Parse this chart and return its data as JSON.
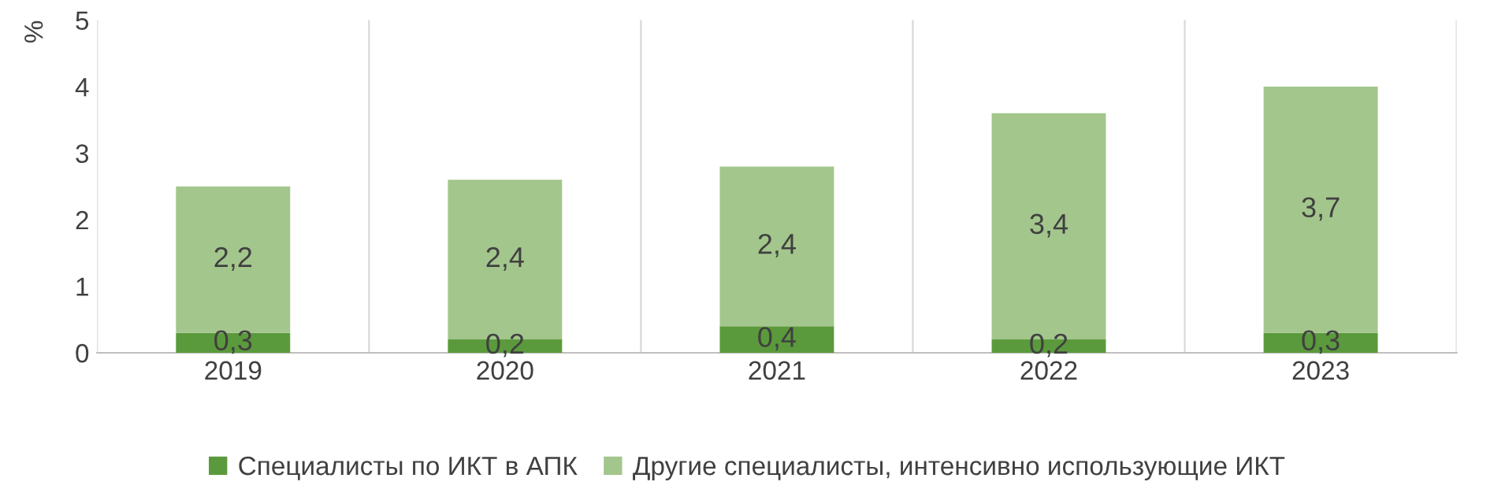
{
  "chart_data": {
    "type": "bar",
    "stacked": true,
    "ylabel": "%",
    "categories": [
      "2019",
      "2020",
      "2021",
      "2022",
      "2023"
    ],
    "series": [
      {
        "name": "Специалисты по ИКТ в АПК",
        "color": "#5b9a3c",
        "values": [
          0.3,
          0.2,
          0.4,
          0.2,
          0.3
        ],
        "value_labels": [
          "0,3",
          "0,2",
          "0,4",
          "0,2",
          "0,3"
        ]
      },
      {
        "name": "Другие специалисты, интенсивно использующие ИКТ",
        "color": "#a3c68c",
        "values": [
          2.2,
          2.4,
          2.4,
          3.4,
          3.7
        ],
        "value_labels": [
          "2,2",
          "2,4",
          "2,4",
          "3,4",
          "3,7"
        ]
      }
    ],
    "ylim": [
      0,
      5
    ],
    "yticks": [
      0,
      1,
      2,
      3,
      4,
      5
    ],
    "grid": "x",
    "legend": "bottom"
  }
}
